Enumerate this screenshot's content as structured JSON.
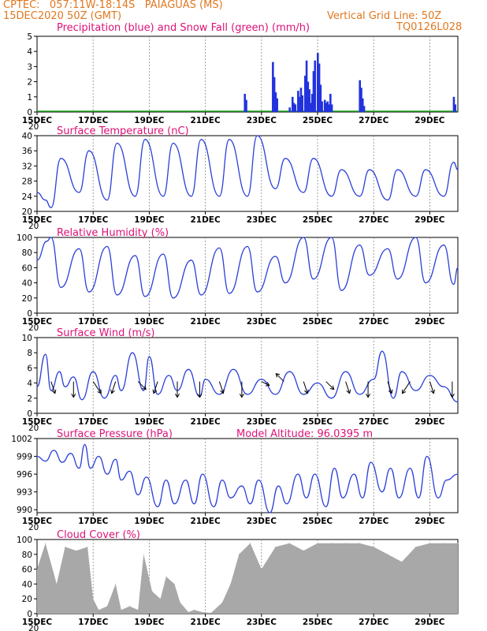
{
  "header": {
    "line1": "CPTEC:   057:11W-18:14S   PAIAGUAS (MS)",
    "line2": "15DEC2020 50Z (GMT)",
    "right1": "Vertical Grid Line: 50Z",
    "right2": "TQ0126L028"
  },
  "x_ticks": [
    "15DEC",
    "17DEC",
    "19DEC",
    "21DEC",
    "23DEC",
    "25DEC",
    "27DEC",
    "29DEC"
  ],
  "x_clip_label": "20",
  "colors": {
    "line": "#2a3fd8",
    "precip": "#2233dd",
    "snow": "#22aa22",
    "cloud": "#a8a8a8",
    "title": "#dd1177",
    "header": "#e07820"
  },
  "panels": {
    "precip": {
      "title": "Precipitation (blue) and Snow Fall (green) (mm/h)",
      "yticks": [
        "5",
        "4",
        "3",
        "2",
        "1",
        "0"
      ]
    },
    "temp": {
      "title": "Surface Temperature (nC)",
      "yticks": [
        "40",
        "36",
        "32",
        "28",
        "24",
        "20"
      ]
    },
    "rh": {
      "title": "Relative Humidity (%)",
      "yticks": [
        "100",
        "80",
        "60",
        "40",
        "20",
        "0"
      ]
    },
    "wind": {
      "title": "Surface Wind (m/s)",
      "yticks": [
        "10",
        "8",
        "6",
        "4",
        "2",
        "0"
      ]
    },
    "pressure": {
      "title": "Surface Pressure (hPa)",
      "extra": "Model Altitude: 96.0395 m",
      "yticks": [
        "1002",
        "999",
        "996",
        "993",
        "990"
      ]
    },
    "cloud": {
      "title": "Cloud Cover (%)",
      "yticks": [
        "100",
        "80",
        "60",
        "40",
        "20",
        "0"
      ]
    }
  },
  "chart_data": [
    {
      "type": "bar",
      "title": "Precipitation (blue) and Snow Fall (green) (mm/h)",
      "ylim": [
        0,
        5
      ],
      "x_days": [
        0,
        15
      ],
      "series": [
        {
          "name": "Precipitation",
          "x": [
            7.4,
            7.45,
            8.4,
            8.45,
            8.5,
            8.55,
            9.0,
            9.1,
            9.15,
            9.2,
            9.3,
            9.35,
            9.4,
            9.45,
            9.55,
            9.6,
            9.65,
            9.7,
            9.75,
            9.8,
            9.85,
            9.9,
            10.0,
            10.05,
            10.1,
            10.15,
            10.25,
            10.3,
            10.35,
            10.4,
            10.45,
            10.5,
            11.5,
            11.55,
            11.6,
            11.65,
            14.85,
            14.9
          ],
          "values": [
            1.2,
            0.8,
            3.3,
            2.3,
            1.3,
            0.9,
            0.3,
            1.0,
            0.6,
            0.5,
            1.4,
            1.0,
            1.6,
            1.1,
            2.4,
            3.4,
            2.0,
            1.5,
            0.6,
            1.2,
            2.7,
            3.4,
            3.9,
            3.2,
            1.8,
            0.7,
            0.8,
            0.6,
            0.7,
            0.5,
            1.2,
            0.5,
            2.1,
            1.6,
            0.9,
            0.4,
            1.0,
            0.5
          ]
        }
      ]
    },
    {
      "type": "line",
      "title": "Surface Temperature (nC)",
      "ylim": [
        19,
        41
      ],
      "x_days": [
        0,
        15
      ],
      "series": [
        {
          "x": [
            0,
            0.3,
            0.5,
            0.85,
            1.5,
            1.85,
            2.5,
            2.85,
            3.5,
            3.85,
            4.5,
            4.85,
            5.5,
            5.85,
            6.5,
            6.85,
            7.5,
            7.85,
            8.5,
            8.85,
            9.5,
            9.85,
            10.5,
            10.85,
            11.5,
            11.85,
            12.5,
            12.85,
            13.5,
            13.85,
            14.5,
            14.85,
            15
          ],
          "y": [
            25,
            23,
            21,
            34,
            25,
            36,
            23,
            38,
            24,
            39,
            24,
            38,
            24,
            39,
            24,
            39,
            24,
            40,
            26,
            34,
            25,
            34,
            24,
            31,
            24,
            31,
            23,
            31,
            24,
            31,
            24,
            33,
            31
          ]
        }
      ]
    },
    {
      "type": "line",
      "title": "Relative Humidity (%)",
      "ylim": [
        0,
        100
      ],
      "x_days": [
        0,
        15
      ],
      "series": [
        {
          "x": [
            0,
            0.35,
            0.5,
            0.85,
            1.5,
            1.85,
            2.5,
            2.85,
            3.5,
            3.85,
            4.5,
            4.85,
            5.5,
            5.85,
            6.5,
            6.85,
            7.5,
            7.85,
            8.5,
            8.85,
            9.5,
            9.85,
            10.5,
            10.85,
            11.5,
            11.85,
            12.5,
            12.85,
            13.5,
            13.85,
            14.5,
            14.85,
            15
          ],
          "y": [
            70,
            95,
            100,
            34,
            85,
            28,
            88,
            24,
            76,
            22,
            78,
            20,
            70,
            24,
            86,
            26,
            88,
            28,
            75,
            40,
            100,
            45,
            100,
            30,
            90,
            50,
            85,
            45,
            100,
            40,
            90,
            38,
            60
          ]
        }
      ]
    },
    {
      "type": "line",
      "title": "Surface Wind (m/s)",
      "ylim": [
        0,
        10
      ],
      "x_days": [
        0,
        15
      ],
      "series": [
        {
          "x": [
            0,
            0.3,
            0.5,
            0.8,
            1.0,
            1.3,
            1.6,
            2.0,
            2.4,
            2.8,
            3.0,
            3.4,
            3.8,
            4.0,
            4.3,
            4.7,
            5.0,
            5.4,
            5.8,
            6.0,
            6.5,
            7.0,
            7.5,
            8.0,
            8.5,
            9.0,
            9.5,
            10.0,
            10.5,
            11.0,
            11.5,
            12.0,
            12.3,
            12.7,
            13.0,
            13.5,
            14.0,
            14.5,
            15
          ],
          "y": [
            3.5,
            7.8,
            3.0,
            5.5,
            3.5,
            4.8,
            1.8,
            5.5,
            2.0,
            5.0,
            3.0,
            8.0,
            3.0,
            7.5,
            2.5,
            5.0,
            3.0,
            5.8,
            2.2,
            4.5,
            2.5,
            5.8,
            2.5,
            4.5,
            2.5,
            5.5,
            2.5,
            4.0,
            2.0,
            5.5,
            2.5,
            4.5,
            8.2,
            2.0,
            5.5,
            3.0,
            5.0,
            3.5,
            1.5
          ]
        }
      ],
      "arrows": {
        "x": [
          0.5,
          1.3,
          2.0,
          2.8,
          3.6,
          4.3,
          5.0,
          5.8,
          6.5,
          7.3,
          8.0,
          8.8,
          9.5,
          10.3,
          11.0,
          11.8,
          12.5,
          13.3,
          14.0,
          14.8
        ],
        "u": [
          1,
          0,
          2,
          -1,
          2,
          -1,
          0,
          0,
          1,
          0,
          2,
          -2,
          1,
          2,
          1,
          0,
          1,
          -2,
          1,
          0
        ],
        "v": [
          -3,
          -4,
          -3,
          -3,
          -2,
          -3,
          -4,
          -4,
          -3,
          -4,
          -1,
          2,
          -3,
          -2,
          -3,
          -4,
          -3,
          -3,
          -3,
          -4
        ]
      }
    },
    {
      "type": "line",
      "title": "Surface Pressure (hPa)",
      "ylim": [
        989.5,
        1002
      ],
      "x_days": [
        0,
        15
      ],
      "series": [
        {
          "x": [
            0,
            0.3,
            0.6,
            0.9,
            1.2,
            1.5,
            1.7,
            1.9,
            2.2,
            2.5,
            2.8,
            3.0,
            3.3,
            3.6,
            3.9,
            4.3,
            4.6,
            4.9,
            5.3,
            5.6,
            5.9,
            6.3,
            6.6,
            6.9,
            7.3,
            7.6,
            7.9,
            8.3,
            8.6,
            8.9,
            9.3,
            9.6,
            9.9,
            10.3,
            10.6,
            10.9,
            11.3,
            11.6,
            11.9,
            12.3,
            12.6,
            12.9,
            13.3,
            13.6,
            13.9,
            14.3,
            14.6,
            15
          ],
          "y": [
            999,
            998.2,
            1000,
            998,
            999.5,
            997,
            1001,
            997,
            999,
            996,
            998.5,
            995,
            996.5,
            992.5,
            995.5,
            990.5,
            995,
            991,
            995,
            991,
            996,
            990.5,
            995,
            992,
            994,
            991,
            995,
            989.5,
            994,
            991,
            996,
            992,
            996,
            990.5,
            997,
            992,
            996,
            992,
            998,
            993,
            997,
            992,
            997,
            992,
            999,
            992,
            995,
            996
          ]
        }
      ]
    },
    {
      "type": "area",
      "title": "Cloud Cover (%)",
      "ylim": [
        0,
        100
      ],
      "x_days": [
        0,
        15
      ],
      "series": [
        {
          "x": [
            0,
            0.3,
            0.7,
            1.0,
            1.4,
            1.8,
            2.0,
            2.2,
            2.5,
            2.8,
            3.0,
            3.3,
            3.6,
            3.8,
            4.1,
            4.4,
            4.6,
            4.9,
            5.1,
            5.4,
            5.6,
            5.9,
            6.2,
            6.6,
            6.9,
            7.2,
            7.6,
            8.0,
            8.5,
            9.0,
            9.5,
            10.0,
            10.5,
            11.0,
            11.5,
            12.0,
            12.5,
            13.0,
            13.5,
            14.0,
            14.5,
            15
          ],
          "y": [
            60,
            95,
            40,
            90,
            85,
            90,
            20,
            5,
            10,
            40,
            5,
            10,
            5,
            80,
            30,
            20,
            50,
            40,
            15,
            2,
            5,
            2,
            1,
            15,
            40,
            80,
            95,
            60,
            90,
            95,
            85,
            95,
            95,
            95,
            95,
            90,
            80,
            70,
            90,
            95,
            95,
            95
          ]
        }
      ]
    }
  ]
}
